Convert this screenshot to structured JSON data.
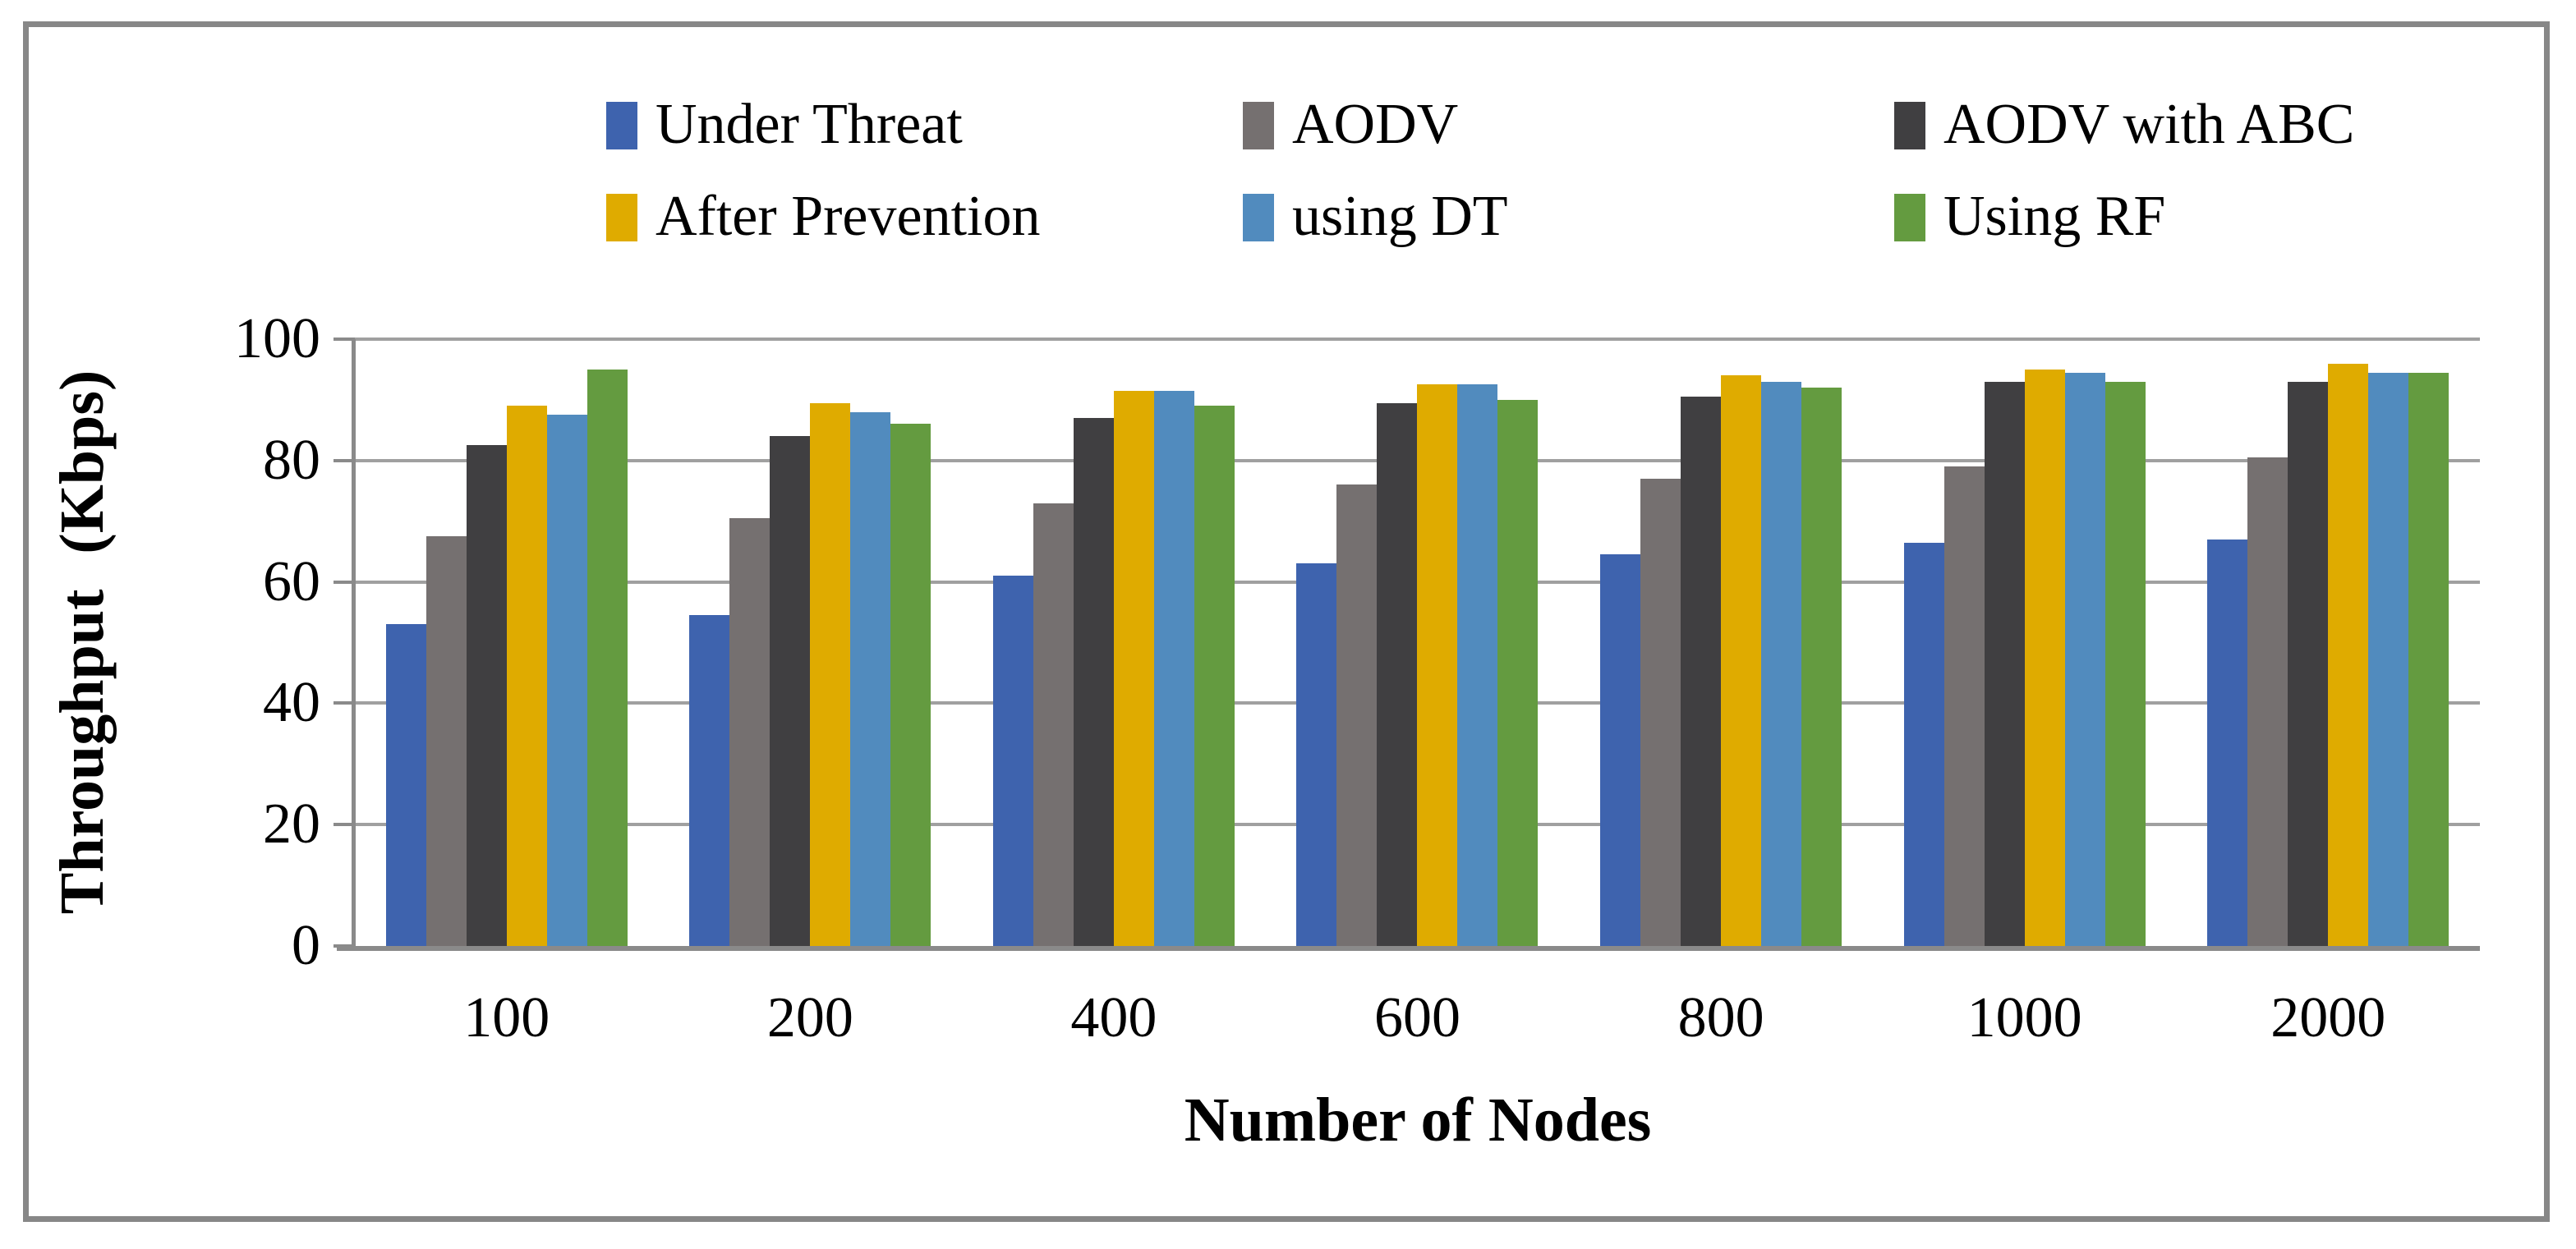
{
  "chart_data": {
    "type": "bar",
    "title": "",
    "xlabel": "Number of Nodes",
    "ylabel": "Throughput (Kbps)",
    "ylim": [
      0,
      100
    ],
    "yticks": [
      0,
      20,
      40,
      60,
      80,
      100
    ],
    "grid": true,
    "legend_position": "top",
    "categories": [
      "100",
      "200",
      "400",
      "600",
      "800",
      "1000",
      "2000"
    ],
    "series": [
      {
        "name": "Under Threat",
        "color": "#3e63ae",
        "values": [
          53,
          54.5,
          61,
          63,
          64.5,
          66.5,
          67
        ]
      },
      {
        "name": "AODV",
        "color": "#757070",
        "values": [
          67.5,
          70.5,
          73,
          76,
          77,
          79,
          80.5
        ]
      },
      {
        "name": "AODV with ABC",
        "color": "#403f41",
        "values": [
          82.5,
          84,
          87,
          89.5,
          90.5,
          93,
          93
        ]
      },
      {
        "name": "After Prevention",
        "color": "#dfab00",
        "values": [
          89,
          89.5,
          91.5,
          92.5,
          94,
          95,
          96
        ]
      },
      {
        "name": "using DT",
        "color": "#518bbe",
        "values": [
          87.5,
          88,
          91.5,
          92.5,
          93,
          94.5,
          94.5
        ]
      },
      {
        "name": "Using RF",
        "color": "#649b40",
        "values": [
          95,
          86,
          89,
          90,
          92,
          93,
          94.5
        ]
      }
    ]
  },
  "frame": {
    "border_color": "#878787",
    "axis_color": "#8a8a8a",
    "gridline_color": "#a0a0a0",
    "background": "#ffffff"
  }
}
